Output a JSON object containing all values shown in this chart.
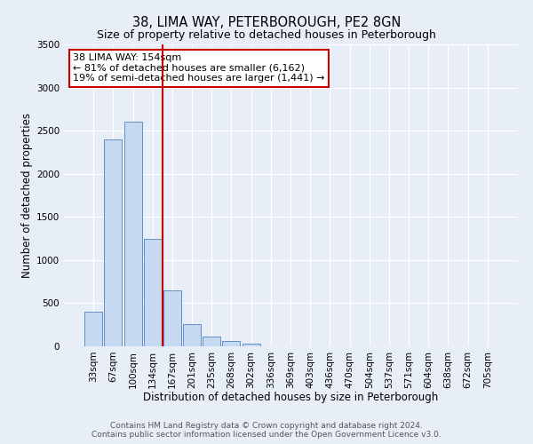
{
  "title": "38, LIMA WAY, PETERBOROUGH, PE2 8GN",
  "subtitle": "Size of property relative to detached houses in Peterborough",
  "xlabel": "Distribution of detached houses by size in Peterborough",
  "ylabel": "Number of detached properties",
  "bar_labels": [
    "33sqm",
    "67sqm",
    "100sqm",
    "134sqm",
    "167sqm",
    "201sqm",
    "235sqm",
    "268sqm",
    "302sqm",
    "336sqm",
    "369sqm",
    "403sqm",
    "436sqm",
    "470sqm",
    "504sqm",
    "537sqm",
    "571sqm",
    "604sqm",
    "638sqm",
    "672sqm",
    "705sqm"
  ],
  "bar_values": [
    400,
    2400,
    2600,
    1250,
    650,
    260,
    110,
    60,
    30,
    0,
    0,
    0,
    0,
    0,
    0,
    0,
    0,
    0,
    0,
    0,
    0
  ],
  "bar_color": "#c5d9f1",
  "bar_edge_color": "#4f81bd",
  "vline_color": "#cc0000",
  "vline_pos": 3.5,
  "ylim": [
    0,
    3500
  ],
  "yticks": [
    0,
    500,
    1000,
    1500,
    2000,
    2500,
    3000,
    3500
  ],
  "annotation_title": "38 LIMA WAY: 154sqm",
  "annotation_line1": "← 81% of detached houses are smaller (6,162)",
  "annotation_line2": "19% of semi-detached houses are larger (1,441) →",
  "annotation_box_facecolor": "#ffffff",
  "annotation_box_edgecolor": "#cc0000",
  "footer1": "Contains HM Land Registry data © Crown copyright and database right 2024.",
  "footer2": "Contains public sector information licensed under the Open Government Licence v3.0.",
  "bg_color": "#e8eef7",
  "plot_bg_color": "#e8eef7",
  "grid_color": "#ffffff",
  "title_fontsize": 10.5,
  "subtitle_fontsize": 9,
  "axis_label_fontsize": 8.5,
  "tick_fontsize": 7.5,
  "annotation_fontsize": 8,
  "footer_fontsize": 6.5
}
